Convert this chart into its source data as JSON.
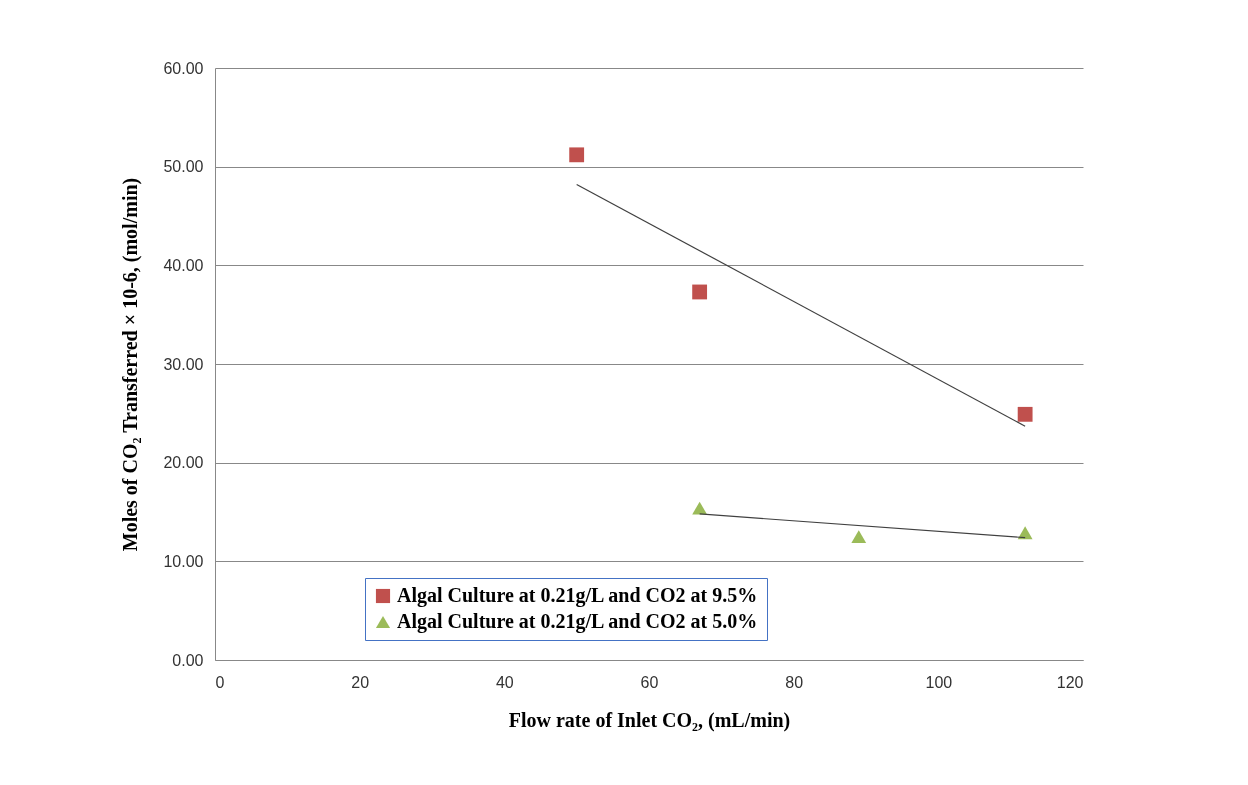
{
  "chart_data": {
    "type": "scatter",
    "xlabel": "Flow rate of Inlet CO₂, (mL/min)",
    "ylabel": "Moles of CO₂ Transferred × 10-6, (mol/min)",
    "xlim": [
      0,
      120
    ],
    "xticks": [
      0,
      20,
      40,
      60,
      80,
      100,
      120
    ],
    "ylim": [
      0,
      60
    ],
    "yticks": [
      {
        "value": 0,
        "label": "0.00"
      },
      {
        "value": 10,
        "label": "10.00"
      },
      {
        "value": 20,
        "label": "20.00"
      },
      {
        "value": 30,
        "label": "30.00"
      },
      {
        "value": 40,
        "label": "40.00"
      },
      {
        "value": 50,
        "label": "50.00"
      },
      {
        "value": 60,
        "label": "60.00"
      }
    ],
    "grid": "y",
    "legend": "bottom",
    "series": [
      {
        "name": "Algal Culture at 0.21g/L and CO2 at 9.5%",
        "type": "scatter",
        "marker": "square",
        "color": "#c0504d",
        "x": [
          50,
          67,
          112
        ],
        "values": [
          51.2,
          37.3,
          24.9
        ]
      },
      {
        "name": "Algal Culture at 0.21g/L and CO2 at 5.0%",
        "type": "scatter",
        "marker": "triangle",
        "color": "#9bbb59",
        "x": [
          67,
          89,
          112
        ],
        "values": [
          15.4,
          12.5,
          12.9
        ]
      },
      {
        "type": "line",
        "color": "#404040",
        "line_style": "solid",
        "marker": "none",
        "x": [
          50,
          112
        ],
        "values": [
          48.2,
          23.7
        ]
      },
      {
        "type": "line",
        "color": "#404040",
        "line_style": "solid",
        "marker": "none",
        "x": [
          67,
          112
        ],
        "values": [
          14.8,
          12.4
        ]
      }
    ]
  }
}
